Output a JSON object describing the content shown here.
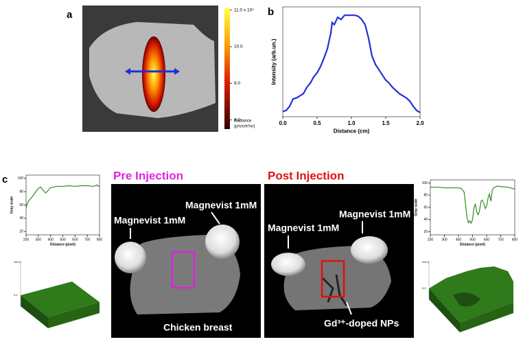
{
  "panel_labels": {
    "a": "a",
    "b": "b",
    "c": "c"
  },
  "colorbar": {
    "title": [
      "Radiance",
      "(p/s/cm²/sr)"
    ],
    "lim": [
      7.75,
      11.05
    ],
    "ticks": [
      {
        "value": 11.0,
        "label": "11.0 x 10⁹"
      },
      {
        "value": 10.0,
        "label": "10.0"
      },
      {
        "value": 9.0,
        "label": "9.0"
      },
      {
        "value": 8.0,
        "label": "8.0"
      }
    ]
  },
  "mri": {
    "pre": {
      "title": "Pre Injection",
      "left_label": "Magnevist 1mM",
      "right_label": "Magnevist 1mM",
      "bottom_label": "Chicken breast"
    },
    "post": {
      "title": "Post Injection",
      "left_label": "Magnevist 1mM",
      "right_label": "Magnevist 1mM",
      "bottom_label": "Gd³⁺-doped NPs"
    }
  },
  "surfaces": {
    "left": {
      "z_top": "100.0",
      "z_mid": "0.0"
    },
    "right": {
      "z_top": "100.0",
      "z_mid": "0.0"
    }
  },
  "chart_data": [
    {
      "type": "line",
      "x_label": "Distance (cm)",
      "y_label": "Intensity (arb.un.)",
      "color": "#1f2fd6",
      "x": [
        0,
        0.05,
        0.1,
        0.15,
        0.2,
        0.25,
        0.3,
        0.35,
        0.4,
        0.45,
        0.5,
        0.55,
        0.6,
        0.65,
        0.7,
        0.72,
        0.75,
        0.8,
        0.85,
        0.9,
        0.95,
        1.0,
        1.05,
        1.1,
        1.15,
        1.2,
        1.25,
        1.3,
        1.35,
        1.4,
        1.45,
        1.5,
        1.55,
        1.6,
        1.65,
        1.7,
        1.75,
        1.8,
        1.85,
        1.9,
        1.95,
        2.0
      ],
      "values": [
        5,
        6,
        10,
        17,
        18,
        20,
        22,
        28,
        32,
        38,
        42,
        48,
        56,
        65,
        80,
        90,
        88,
        95,
        93,
        97,
        97,
        97,
        97,
        96,
        93,
        88,
        75,
        58,
        50,
        45,
        40,
        35,
        32,
        28,
        25,
        22,
        20,
        18,
        15,
        10,
        6,
        4
      ],
      "xlim": [
        0,
        2.0
      ],
      "ylim": [
        0,
        105
      ],
      "xticks": [
        {
          "value": 0,
          "label": "0.0"
        },
        0.5,
        {
          "value": 1,
          "label": "1.0"
        },
        1.5,
        {
          "value": 2,
          "label": "2.0"
        }
      ]
    },
    {
      "type": "line",
      "x_label": "Distance (pixel)",
      "y_label": "Gray scale",
      "color": "#2f8a1f",
      "x": [
        200,
        210,
        220,
        240,
        260,
        280,
        300,
        320,
        340,
        360,
        380,
        400,
        450,
        500,
        550,
        600,
        650,
        700,
        750,
        780,
        790,
        800
      ],
      "values": [
        55,
        62,
        66,
        70,
        75,
        80,
        85,
        87,
        82,
        78,
        82,
        86,
        88,
        88,
        89,
        88,
        89,
        89,
        88,
        90,
        88,
        89
      ],
      "xlim": [
        200,
        800
      ],
      "ylim": [
        15,
        105
      ],
      "xticks": [
        200,
        300,
        400,
        500,
        600,
        700,
        800
      ],
      "yticks": [
        20,
        40,
        60,
        80,
        100
      ]
    },
    {
      "type": "line",
      "x_label": "Distance (pixel)",
      "y_label": "Gray scale",
      "color": "#2f8a1f",
      "x": [
        200,
        250,
        300,
        350,
        400,
        420,
        440,
        450,
        460,
        470,
        480,
        490,
        500,
        510,
        520,
        530,
        540,
        550,
        560,
        570,
        580,
        590,
        600,
        610,
        620,
        630,
        640,
        650,
        660,
        680,
        700,
        750,
        800
      ],
      "values": [
        93,
        93,
        92,
        92,
        92,
        91,
        85,
        65,
        45,
        35,
        38,
        34,
        40,
        60,
        65,
        52,
        48,
        55,
        70,
        72,
        66,
        58,
        62,
        75,
        82,
        70,
        88,
        92,
        93,
        95,
        94,
        93,
        90
      ],
      "xlim": [
        200,
        800
      ],
      "ylim": [
        15,
        105
      ],
      "xticks": [
        200,
        300,
        400,
        500,
        600,
        700,
        800
      ],
      "yticks": [
        20,
        40,
        60,
        80,
        100
      ]
    }
  ]
}
